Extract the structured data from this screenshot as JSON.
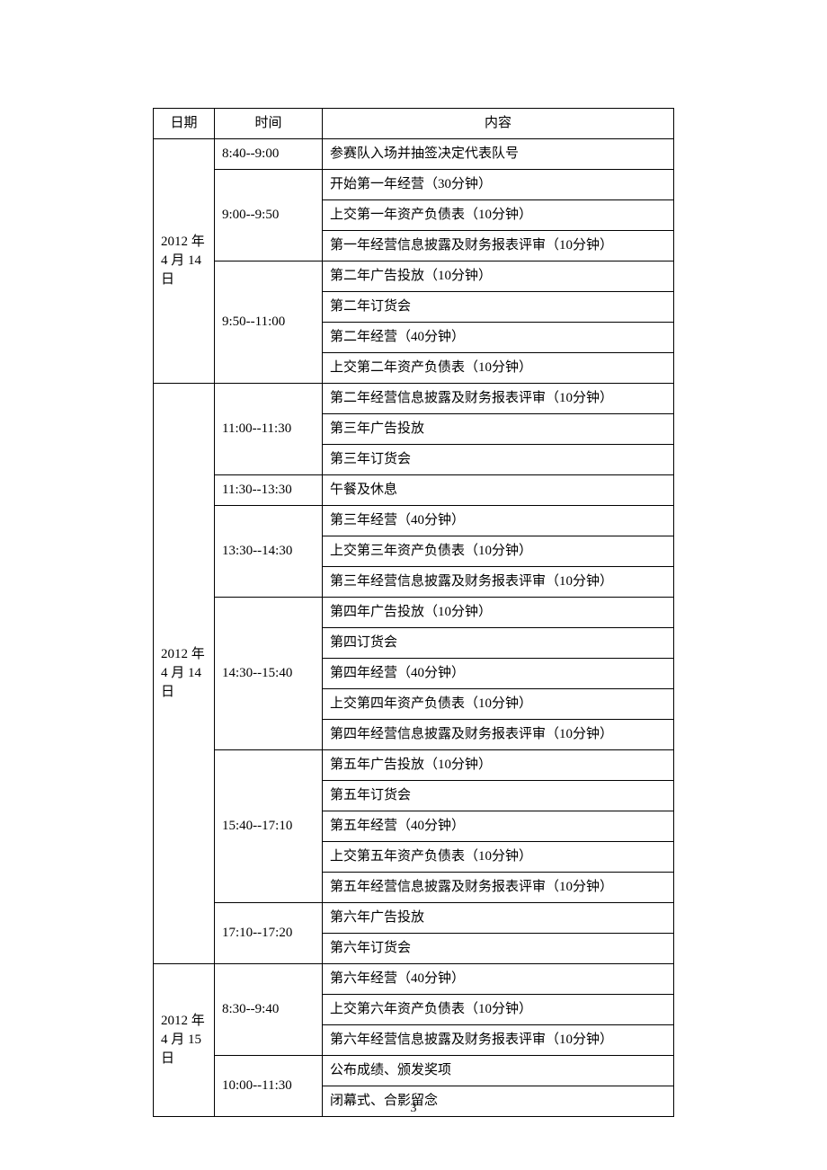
{
  "header": {
    "date": "日期",
    "time": "时间",
    "content": "内容"
  },
  "blocks": [
    {
      "date": "2012 年4 月 14日",
      "segments": [
        {
          "time": "8:40--9:00",
          "items": [
            "参赛队入场并抽签决定代表队号"
          ]
        },
        {
          "time": "9:00--9:50",
          "items": [
            "开始第一年经营（30分钟）",
            "上交第一年资产负债表（10分钟）",
            "第一年经营信息披露及财务报表评审（10分钟）"
          ]
        },
        {
          "time": "9:50--11:00",
          "items": [
            "第二年广告投放（10分钟）",
            "第二年订货会",
            "第二年经营（40分钟）",
            "上交第二年资产负债表（10分钟）"
          ]
        }
      ]
    },
    {
      "date": "2012 年4 月 14日",
      "segments": [
        {
          "time": "11:00--11:30",
          "items": [
            "第二年经营信息披露及财务报表评审（10分钟）",
            "第三年广告投放",
            "第三年订货会"
          ]
        },
        {
          "time": "11:30--13:30",
          "items": [
            "午餐及休息"
          ]
        },
        {
          "time": "13:30--14:30",
          "items": [
            "第三年经营（40分钟）",
            "上交第三年资产负债表（10分钟）",
            "第三年经营信息披露及财务报表评审（10分钟）"
          ]
        },
        {
          "time": "14:30--15:40",
          "items": [
            "第四年广告投放（10分钟）",
            "第四订货会",
            "第四年经营（40分钟）",
            "上交第四年资产负债表（10分钟）",
            "第四年经营信息披露及财务报表评审（10分钟）"
          ]
        },
        {
          "time": "15:40--17:10",
          "items": [
            "第五年广告投放（10分钟）",
            "第五年订货会",
            "第五年经营（40分钟）",
            "上交第五年资产负债表（10分钟）",
            "第五年经营信息披露及财务报表评审（10分钟）"
          ]
        },
        {
          "time": "17:10--17:20",
          "items": [
            "第六年广告投放",
            "第六年订货会"
          ]
        }
      ]
    },
    {
      "date": "2012 年4 月 15日",
      "segments": [
        {
          "time": "8:30--9:40",
          "items": [
            "第六年经营（40分钟）",
            "上交第六年资产负债表（10分钟）",
            "第六年经营信息披露及财务报表评审（10分钟）"
          ]
        },
        {
          "time": "10:00--11:30",
          "items": [
            "公布成绩、颁发奖项",
            "闭幕式、合影留念"
          ]
        }
      ]
    }
  ],
  "page_number": "3"
}
